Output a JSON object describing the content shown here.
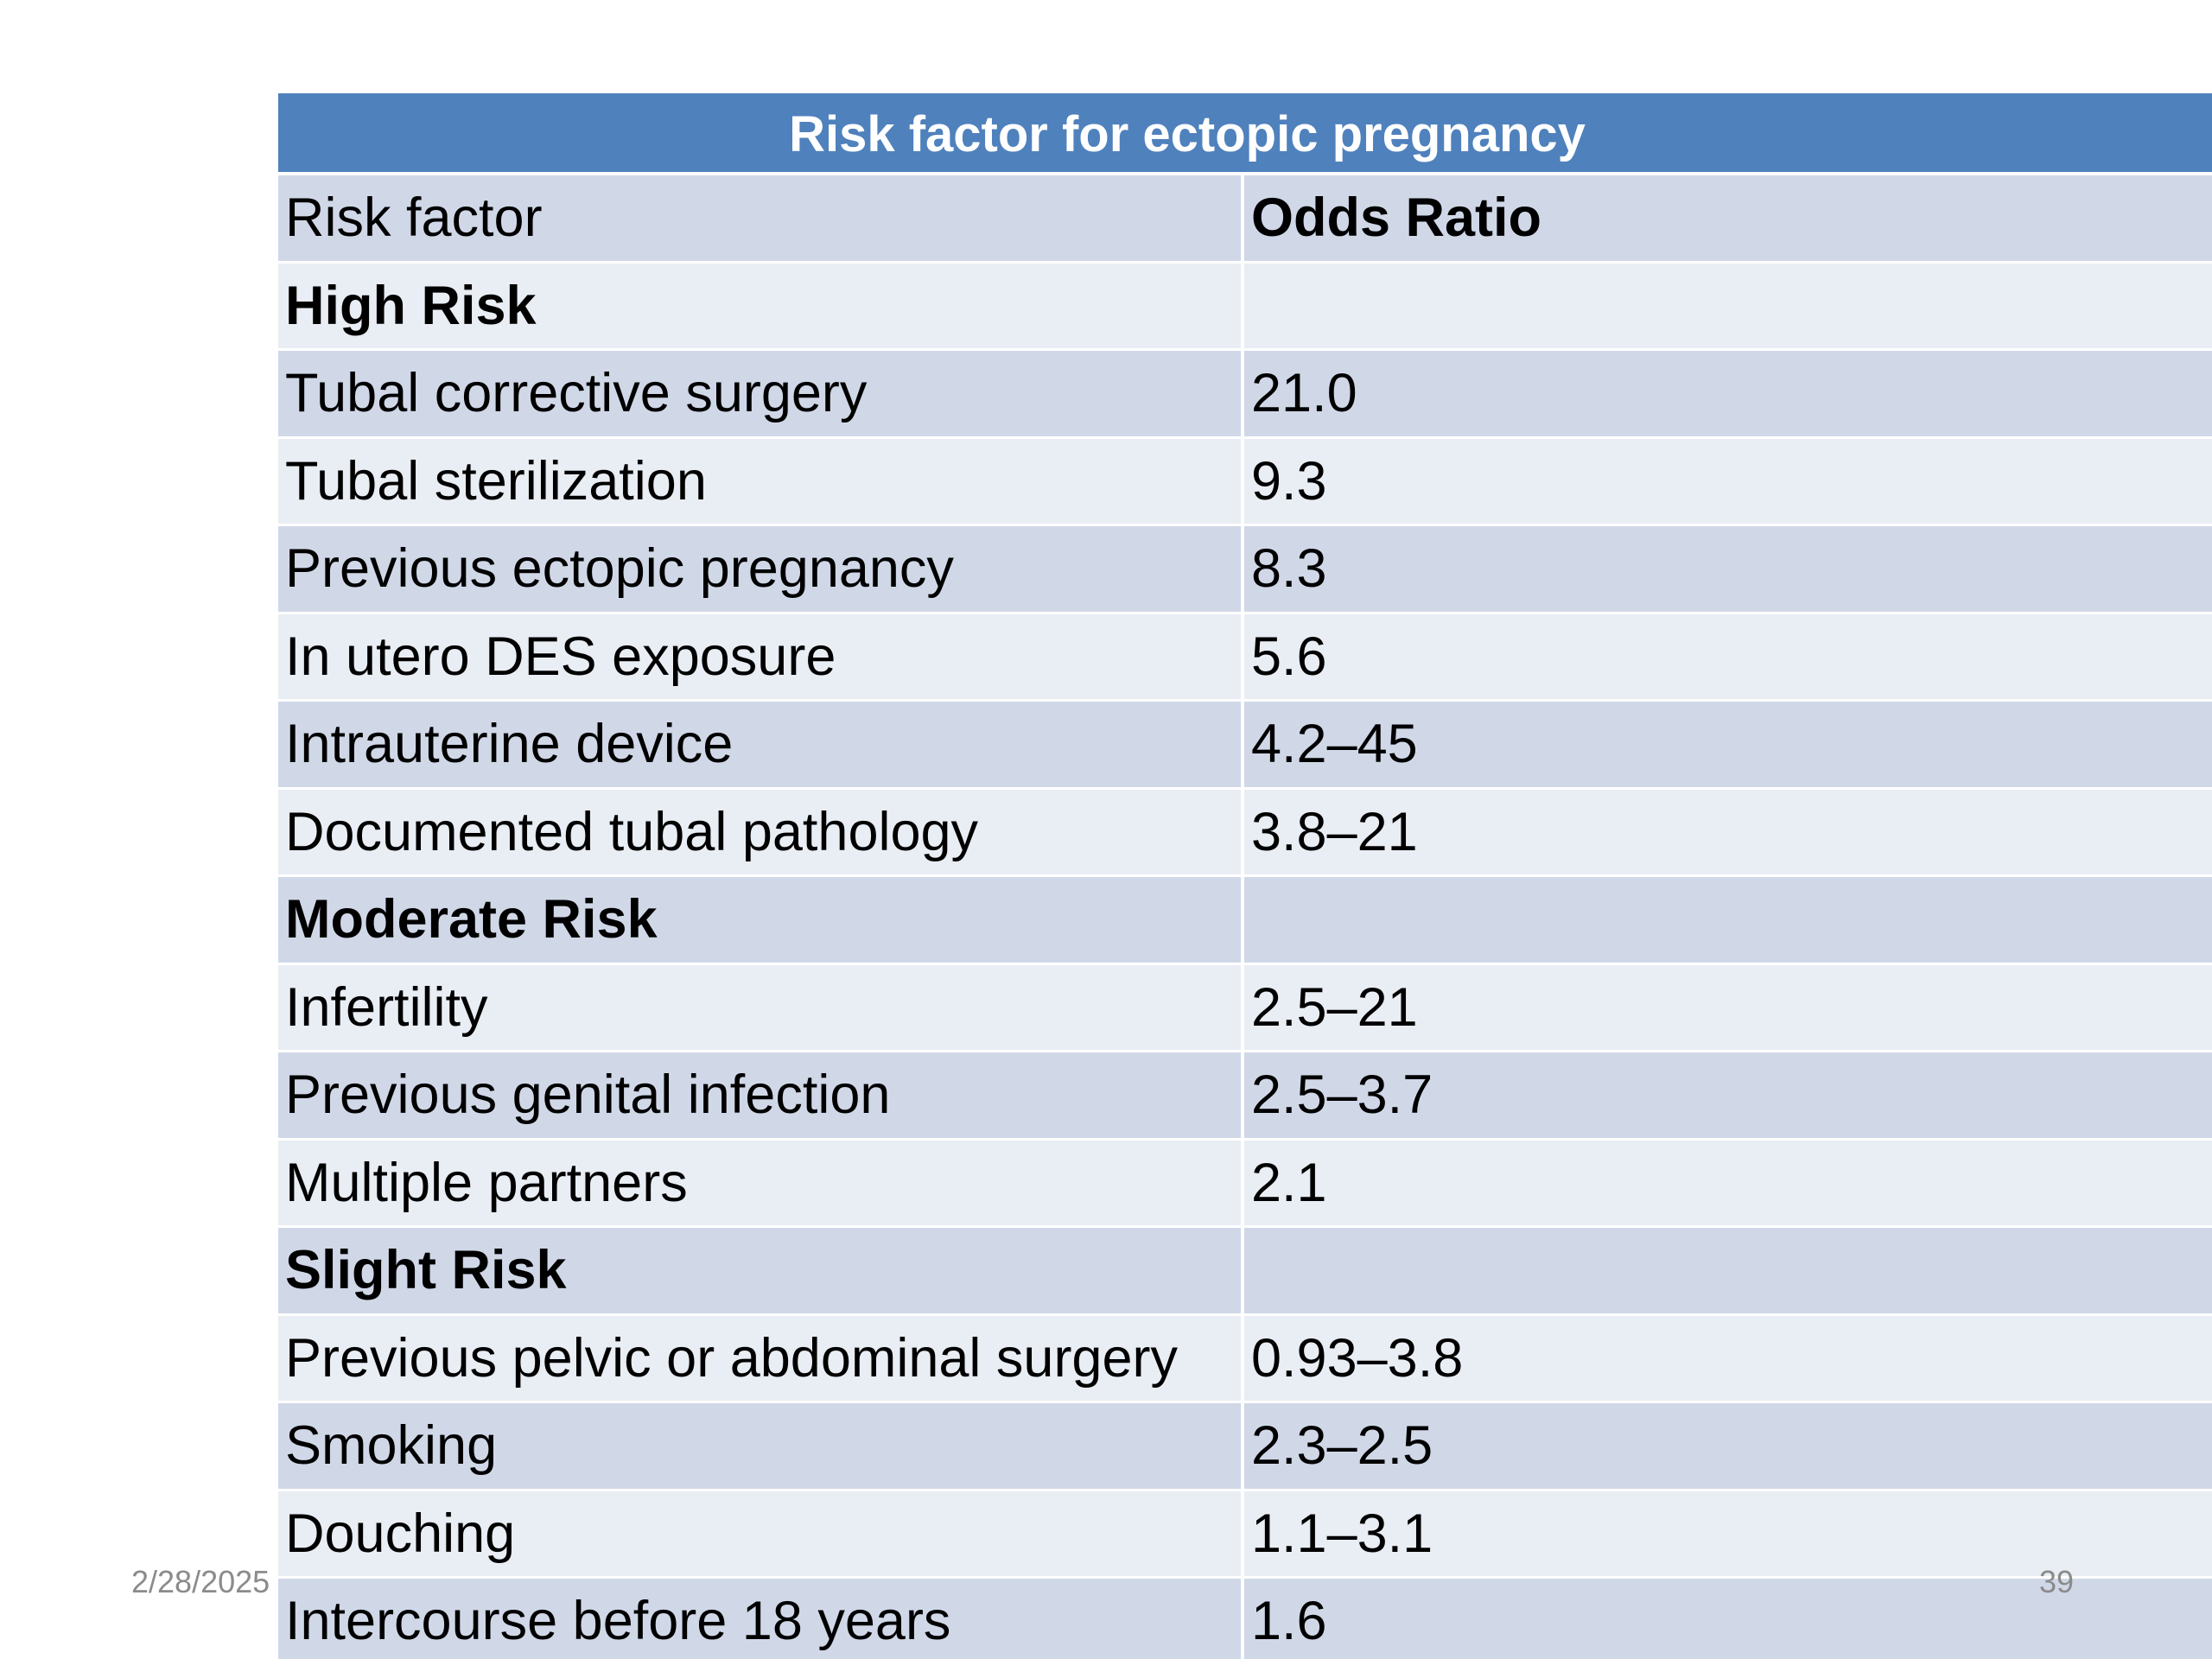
{
  "table": {
    "title": "Risk factor for ectopic pregnancy",
    "header": {
      "col1": "Risk factor",
      "col2": "Odds Ratio"
    },
    "rows": [
      {
        "label": "High Risk",
        "value": "",
        "section": true
      },
      {
        "label": "Tubal corrective surgery",
        "value": "21.0",
        "section": false
      },
      {
        "label": "Tubal sterilization",
        "value": "9.3",
        "section": false
      },
      {
        "label": "Previous ectopic pregnancy",
        "value": "8.3",
        "section": false
      },
      {
        "label": "In utero DES exposure",
        "value": "5.6",
        "section": false
      },
      {
        "label": "Intrauterine device",
        "value": "4.2–45",
        "section": false
      },
      {
        "label": "Documented tubal pathology",
        "value": "3.8–21",
        "section": false
      },
      {
        "label": "Moderate Risk",
        "value": "",
        "section": true
      },
      {
        "label": "Infertility",
        "value": "2.5–21",
        "section": false
      },
      {
        "label": "Previous genital infection",
        "value": "2.5–3.7",
        "section": false
      },
      {
        "label": "Multiple partners",
        "value": "2.1",
        "section": false
      },
      {
        "label": "Slight Risk",
        "value": "",
        "section": true
      },
      {
        "label": "Previous pelvic or abdominal surgery",
        "value": "0.93–3.8",
        "section": false
      },
      {
        "label": "Smoking",
        "value": "2.3–2.5",
        "section": false
      },
      {
        "label": "Douching",
        "value": "1.1–3.1",
        "section": false
      },
      {
        "label": "Intercourse before 18 years",
        "value": "1.6",
        "section": false
      }
    ]
  },
  "footer": {
    "date": "2/28/2025",
    "page_number": "39"
  },
  "colors": {
    "title_bar": "#4f81bd",
    "row_dark": "#d0d8e8",
    "row_light": "#e9edf4"
  }
}
